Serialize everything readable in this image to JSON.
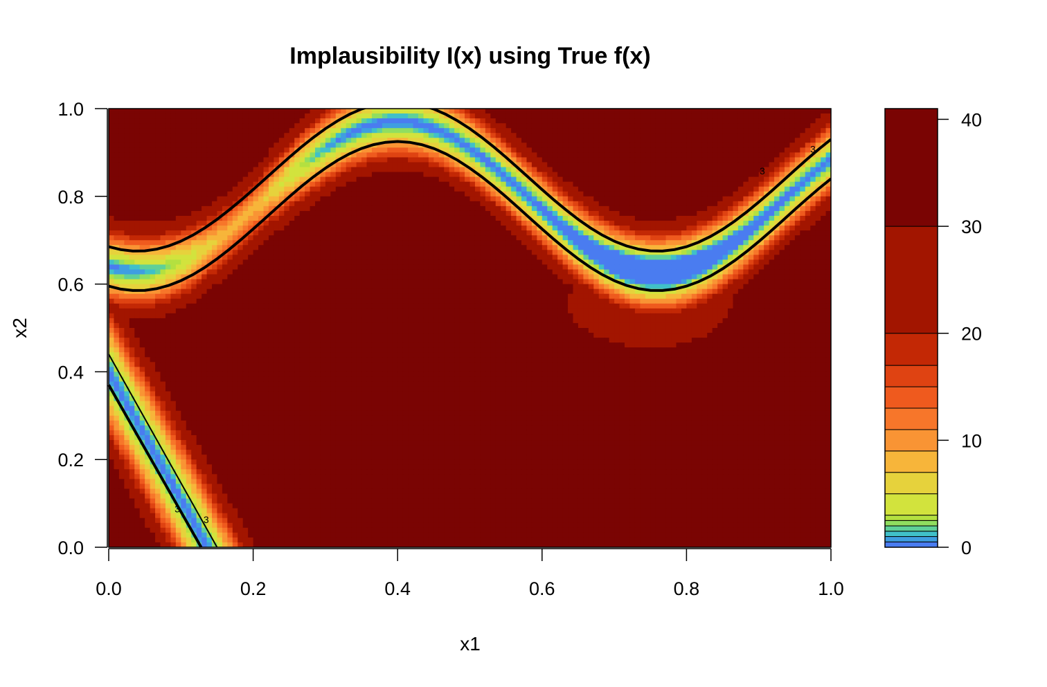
{
  "chart_data": {
    "type": "filled-contour",
    "title": "Implausibility I(x) using True f(x)",
    "xlabel": "x1",
    "ylabel": "x2",
    "xlim": [
      0,
      1
    ],
    "ylim": [
      0,
      1
    ],
    "x_ticks": [
      "0.0",
      "0.2",
      "0.4",
      "0.6",
      "0.8",
      "1.0"
    ],
    "y_ticks": [
      "0.0",
      "0.2",
      "0.4",
      "0.6",
      "0.8",
      "1.0"
    ],
    "colorbar": {
      "ticks": [
        "0",
        "10",
        "20",
        "30",
        "40"
      ],
      "range": [
        0,
        41
      ],
      "levels": [
        0,
        0.5,
        1,
        1.5,
        2,
        2.5,
        3,
        5,
        7,
        9,
        11,
        13,
        15,
        17,
        20,
        30,
        41
      ],
      "colors": [
        "#4a7cf0",
        "#3f9ee0",
        "#40c0c8",
        "#5fd098",
        "#90de60",
        "#b4e040",
        "#d2e33d",
        "#e6d23c",
        "#f7b53a",
        "#f99434",
        "#f7762a",
        "#ef5a1e",
        "#df4312",
        "#c32805",
        "#a21500",
        "#7a0403"
      ]
    },
    "contour_labels": [
      "3",
      "3",
      "3",
      "3"
    ],
    "grid": false,
    "legend": "colorbar-right"
  }
}
